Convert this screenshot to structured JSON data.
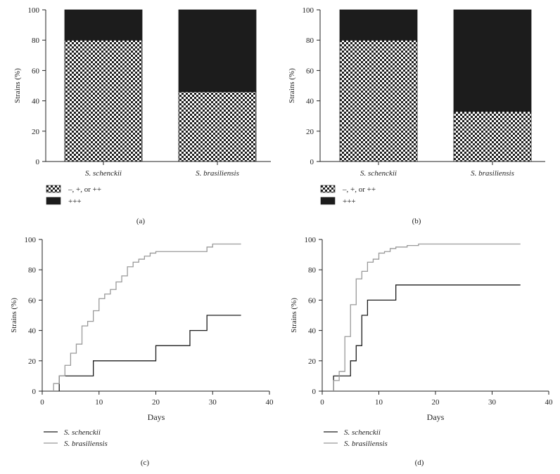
{
  "chart_data": [
    {
      "id": "a",
      "panel_label": "(a)",
      "type": "bar",
      "stacked": true,
      "ylabel": "Strains (%)",
      "ylim": [
        0,
        100
      ],
      "yticks": [
        0,
        20,
        40,
        60,
        80,
        100
      ],
      "categories": [
        "S. schenckii",
        "S. brasiliensis"
      ],
      "series": [
        {
          "name": "–, +, or ++",
          "pattern": "checker",
          "values": [
            80,
            46
          ]
        },
        {
          "name": "+++",
          "pattern": "solid",
          "color": "#1c1c1c",
          "values": [
            20,
            54
          ]
        }
      ],
      "legend_position": "bottom-left"
    },
    {
      "id": "b",
      "panel_label": "(b)",
      "type": "bar",
      "stacked": true,
      "ylabel": "Strains (%)",
      "ylim": [
        0,
        100
      ],
      "yticks": [
        0,
        20,
        40,
        60,
        80,
        100
      ],
      "categories": [
        "S. schenckii",
        "S. brasiliensis"
      ],
      "series": [
        {
          "name": "–, +, or ++",
          "pattern": "checker",
          "values": [
            80,
            33
          ]
        },
        {
          "name": "+++",
          "pattern": "solid",
          "color": "#1c1c1c",
          "values": [
            20,
            67
          ]
        }
      ],
      "legend_position": "bottom-left"
    },
    {
      "id": "c",
      "panel_label": "(c)",
      "type": "line",
      "step": true,
      "xlabel": "Days",
      "ylabel": "Strains (%)",
      "xlim": [
        0,
        40
      ],
      "ylim": [
        0,
        100
      ],
      "xticks": [
        0,
        10,
        20,
        30,
        40
      ],
      "yticks": [
        0,
        20,
        40,
        60,
        80,
        100
      ],
      "series": [
        {
          "name": "S. schenckii",
          "color": "#1c1c1c",
          "x": [
            3,
            9,
            20,
            26,
            29,
            35
          ],
          "y": [
            10,
            20,
            30,
            40,
            50,
            50
          ]
        },
        {
          "name": "S. brasiliensis",
          "color": "#999999",
          "x": [
            2,
            3,
            4,
            5,
            6,
            7,
            8,
            9,
            10,
            11,
            12,
            13,
            14,
            15,
            16,
            17,
            18,
            19,
            20,
            29,
            30,
            35
          ],
          "y": [
            5,
            10,
            17,
            25,
            31,
            43,
            46,
            53,
            61,
            64,
            67,
            72,
            76,
            82,
            85,
            87,
            89,
            91,
            92,
            95,
            97,
            97
          ]
        }
      ],
      "legend_position": "bottom-left"
    },
    {
      "id": "d",
      "panel_label": "(d)",
      "type": "line",
      "step": true,
      "xlabel": "Days",
      "ylabel": "Strains (%)",
      "xlim": [
        0,
        40
      ],
      "ylim": [
        0,
        100
      ],
      "xticks": [
        0,
        10,
        20,
        30,
        40
      ],
      "yticks": [
        0,
        20,
        40,
        60,
        80,
        100
      ],
      "series": [
        {
          "name": "S. schenckii",
          "color": "#1c1c1c",
          "x": [
            2,
            4,
            5,
            6,
            7,
            8,
            13,
            35
          ],
          "y": [
            10,
            10,
            20,
            30,
            50,
            60,
            70,
            70
          ]
        },
        {
          "name": "S. brasiliensis",
          "color": "#999999",
          "x": [
            2,
            3,
            4,
            5,
            6,
            7,
            8,
            9,
            10,
            11,
            12,
            13,
            15,
            17,
            35
          ],
          "y": [
            7,
            13,
            36,
            57,
            74,
            79,
            85,
            87,
            91,
            92,
            94,
            95,
            96,
            97,
            97
          ]
        }
      ],
      "legend_position": "bottom-left"
    }
  ]
}
